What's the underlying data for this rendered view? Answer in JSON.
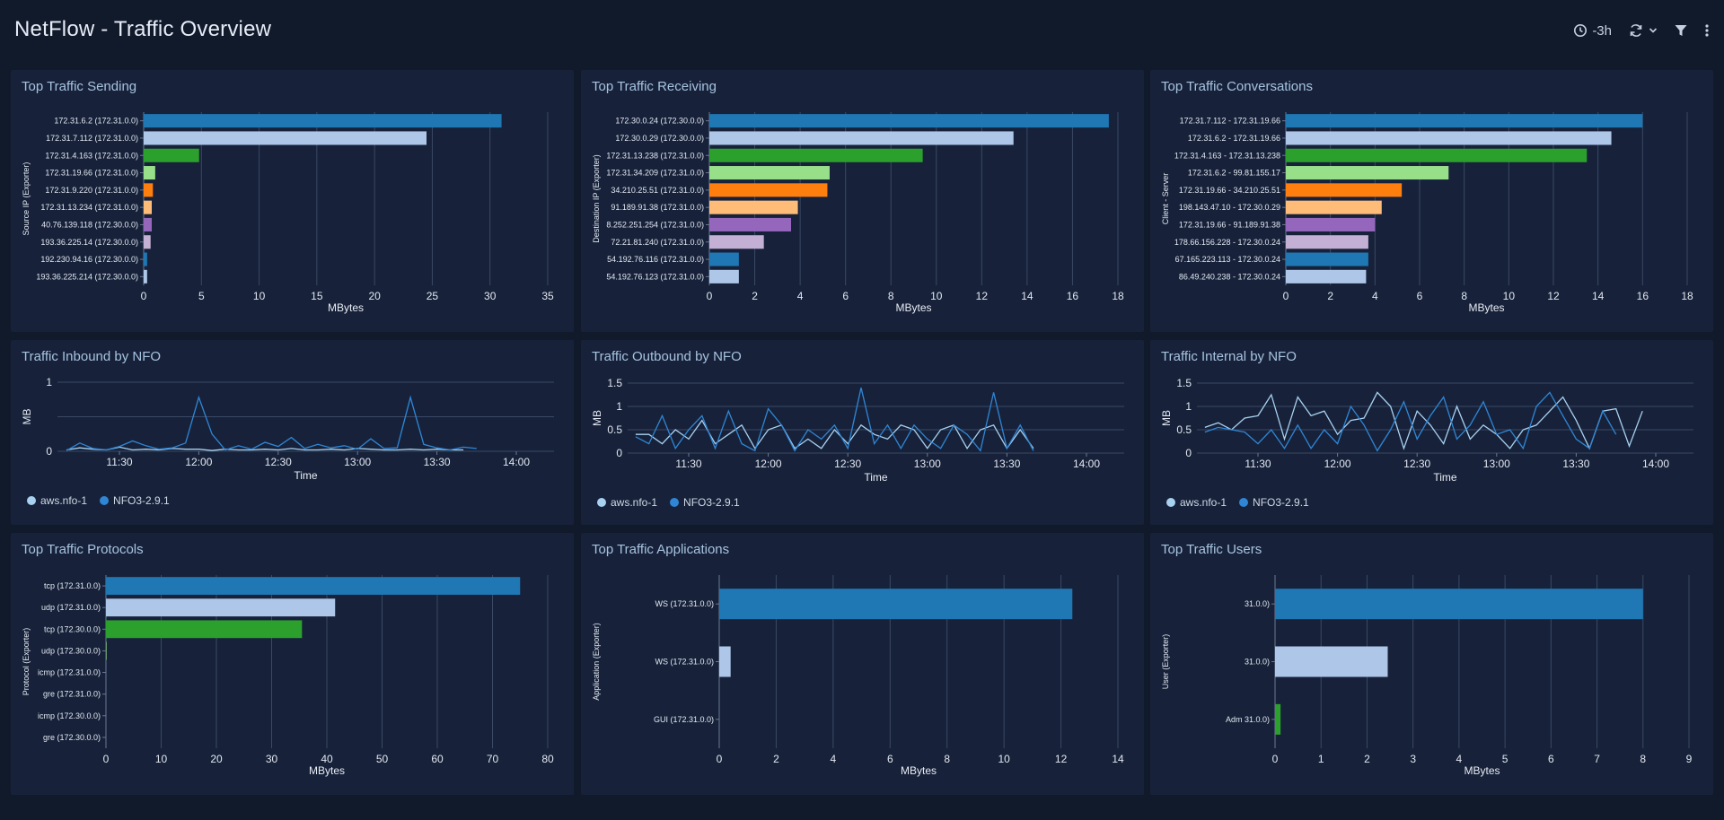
{
  "header": {
    "title": "NetFlow - Traffic Overview",
    "time_range": "-3h"
  },
  "colors": {
    "palette": [
      "#1f77b4",
      "#aec7e8",
      "#2ca02c",
      "#98df8a",
      "#ff7f0e",
      "#ffbb78",
      "#9467bd",
      "#c5b0d5",
      "#1f77b4",
      "#aec7e8"
    ],
    "aws": "#a8d1f0",
    "nfo3": "#2f86d6"
  },
  "panels": {
    "sending": {
      "title": "Top Traffic Sending",
      "chart_data": {
        "type": "bar",
        "orientation": "horizontal",
        "categories": [
          "172.31.6.2 (172.31.0.0)",
          "172.31.7.112 (172.31.0.0)",
          "172.31.4.163 (172.31.0.0)",
          "172.31.19.66 (172.31.0.0)",
          "172.31.9.220 (172.31.0.0)",
          "172.31.13.234 (172.31.0.0)",
          "40.76.139.118 (172.30.0.0)",
          "193.36.225.14 (172.30.0.0)",
          "192.230.94.16 (172.30.0.0)",
          "193.36.225.214 (172.30.0.0)"
        ],
        "values": [
          31,
          24.5,
          4.8,
          1.0,
          0.8,
          0.7,
          0.7,
          0.6,
          0.3,
          0.3
        ],
        "xlim": [
          0,
          35
        ],
        "xticks": [
          0,
          5,
          10,
          15,
          20,
          25,
          30,
          35
        ],
        "xlabel": "MBytes",
        "ylabel": "Source IP (Exporter)"
      }
    },
    "receiving": {
      "title": "Top Traffic Receiving",
      "chart_data": {
        "type": "bar",
        "orientation": "horizontal",
        "categories": [
          "172.30.0.24 (172.30.0.0)",
          "172.30.0.29 (172.30.0.0)",
          "172.31.13.238 (172.31.0.0)",
          "172.31.34.209 (172.31.0.0)",
          "34.210.25.51 (172.31.0.0)",
          "91.189.91.38 (172.31.0.0)",
          "8.252.251.254 (172.31.0.0)",
          "72.21.81.240 (172.31.0.0)",
          "54.192.76.116 (172.31.0.0)",
          "54.192.76.123 (172.31.0.0)"
        ],
        "values": [
          17.6,
          13.4,
          9.4,
          5.3,
          5.2,
          3.9,
          3.6,
          2.4,
          1.3,
          1.3
        ],
        "xlim": [
          0,
          18
        ],
        "xticks": [
          0,
          2,
          4,
          6,
          8,
          10,
          12,
          14,
          16,
          18
        ],
        "xlabel": "MBytes",
        "ylabel": "Destination IP (Exporter)"
      }
    },
    "conversations": {
      "title": "Top Traffic Conversations",
      "chart_data": {
        "type": "bar",
        "orientation": "horizontal",
        "categories": [
          "172.31.7.112 - 172.31.19.66",
          "172.31.6.2 - 172.31.19.66",
          "172.31.4.163 - 172.31.13.238",
          "172.31.6.2 - 99.81.155.17",
          "172.31.19.66 - 34.210.25.51",
          "198.143.47.10 - 172.30.0.29",
          "172.31.19.66 - 91.189.91.38",
          "178.66.156.228 - 172.30.0.24",
          "67.165.223.113 - 172.30.0.24",
          "86.49.240.238 - 172.30.0.24"
        ],
        "values": [
          16,
          14.6,
          13.5,
          7.3,
          5.2,
          4.3,
          4.0,
          3.7,
          3.7,
          3.6
        ],
        "xlim": [
          0,
          18
        ],
        "xticks": [
          0,
          2,
          4,
          6,
          8,
          10,
          12,
          14,
          16,
          18
        ],
        "xlabel": "MBytes",
        "ylabel": "Client - Server"
      }
    },
    "inbound": {
      "title": "Traffic Inbound by NFO",
      "chart_data": {
        "type": "line",
        "x_start": "11:10",
        "x_step_minutes": 5,
        "xticks": [
          "11:30",
          "12:00",
          "12:30",
          "13:00",
          "13:30",
          "14:00"
        ],
        "ylim": [
          0,
          1
        ],
        "yticks": [
          0,
          0.5,
          1
        ],
        "ytick_labels": [
          "0",
          "",
          "1"
        ],
        "xlabel": "Time",
        "ylabel": "MB",
        "series": [
          {
            "name": "aws.nfo-1",
            "values": [
              0.02,
              0.05,
              0.03,
              0.02,
              0.06,
              0.02,
              0.03,
              0.02,
              0.04,
              0.03,
              0.03,
              0.01,
              0.03,
              0.02,
              0.02,
              0.03,
              0.02,
              0.04,
              0.02,
              0.02,
              0.03,
              0.02,
              0.04,
              0.03,
              0.02,
              0.02,
              0.03,
              0.02,
              0.03,
              0.02,
              0.02
            ]
          },
          {
            "name": "NFO3-2.9.1",
            "values": [
              0.01,
              0.12,
              0.04,
              0.02,
              0.07,
              0.15,
              0.08,
              0.03,
              0.05,
              0.12,
              0.78,
              0.25,
              0.02,
              0.08,
              0.03,
              0.13,
              0.07,
              0.2,
              0.04,
              0.1,
              0.05,
              0.08,
              0.03,
              0.18,
              0.04,
              0.05,
              0.78,
              0.1,
              0.05,
              0.02,
              0.06,
              0.04
            ]
          }
        ]
      }
    },
    "outbound": {
      "title": "Traffic Outbound by NFO",
      "chart_data": {
        "type": "line",
        "x_start": "11:10",
        "x_step_minutes": 5,
        "xticks": [
          "11:30",
          "12:00",
          "12:30",
          "13:00",
          "13:30",
          "14:00"
        ],
        "ylim": [
          0,
          1.5
        ],
        "yticks": [
          0,
          0.5,
          1,
          1.5
        ],
        "ytick_labels": [
          "0",
          "0.5",
          "1",
          "1.5"
        ],
        "xlabel": "Time",
        "ylabel": "MB",
        "series": [
          {
            "name": "aws.nfo-1",
            "values": [
              0.4,
              0.4,
              0.2,
              0.5,
              0.3,
              0.7,
              0.2,
              0.4,
              0.6,
              0.1,
              0.5,
              0.6,
              0.1,
              0.3,
              0.1,
              0.5,
              0.2,
              0.6,
              0.4,
              0.3,
              0.6,
              0.5,
              0.1,
              0.5,
              0.6,
              0.1,
              0.5,
              0.6,
              0.1,
              0.5,
              0.1
            ]
          },
          {
            "name": "NFO3-2.9.1",
            "values": [
              0.35,
              0.2,
              0.8,
              0.1,
              0.5,
              0.8,
              0.1,
              0.9,
              0.2,
              0.05,
              0.95,
              0.6,
              0.05,
              0.5,
              0.3,
              0.6,
              0.1,
              1.4,
              0.2,
              0.6,
              0.1,
              0.6,
              0.3,
              0.1,
              0.6,
              0.4,
              0.05,
              1.3,
              0.1,
              0.6,
              0.05
            ]
          }
        ]
      }
    },
    "internal": {
      "title": "Traffic Internal by NFO",
      "chart_data": {
        "type": "line",
        "x_start": "11:10",
        "x_step_minutes": 5,
        "xticks": [
          "11:30",
          "12:00",
          "12:30",
          "13:00",
          "13:30",
          "14:00"
        ],
        "ylim": [
          0,
          1.5
        ],
        "yticks": [
          0,
          0.5,
          1,
          1.5
        ],
        "ytick_labels": [
          "0",
          "0.5",
          "1",
          "1.5"
        ],
        "xlabel": "Time",
        "ylabel": "MB",
        "series": [
          {
            "name": "aws.nfo-1",
            "values": [
              0.55,
              0.65,
              0.5,
              0.75,
              0.8,
              1.25,
              0.3,
              1.2,
              0.8,
              0.9,
              0.4,
              0.7,
              0.75,
              1.3,
              1.0,
              0.1,
              0.9,
              0.6,
              0.2,
              1.0,
              0.3,
              0.6,
              0.4,
              0.1,
              0.5,
              0.6,
              0.9,
              1.2,
              0.7,
              0.1,
              0.9,
              0.95,
              0.15,
              0.9
            ]
          },
          {
            "name": "NFO3-2.9.1",
            "values": [
              0.45,
              0.55,
              0.5,
              0.45,
              0.2,
              0.5,
              0.1,
              0.6,
              0.1,
              0.5,
              0.2,
              1.0,
              0.6,
              0.05,
              0.5,
              1.1,
              0.3,
              0.8,
              1.2,
              0.3,
              0.6,
              1.1,
              0.4,
              0.5,
              0.1,
              1.0,
              1.3,
              0.8,
              0.3,
              0.1,
              0.9,
              0.4
            ]
          }
        ]
      }
    },
    "protocols": {
      "title": "Top Traffic Protocols",
      "chart_data": {
        "type": "bar",
        "orientation": "horizontal",
        "categories": [
          "tcp (172.31.0.0)",
          "udp (172.31.0.0)",
          "tcp (172.30.0.0)",
          "udp (172.30.0.0)",
          "icmp (172.31.0.0)",
          "gre (172.31.0.0)",
          "icmp (172.30.0.0)",
          "gre (172.30.0.0)"
        ],
        "values": [
          75,
          41.5,
          35.5,
          0.1,
          0.05,
          0.05,
          0.02,
          0.01
        ],
        "xlim": [
          0,
          80
        ],
        "xticks": [
          0,
          10,
          20,
          30,
          40,
          50,
          60,
          70,
          80
        ],
        "xlabel": "MBytes",
        "ylabel": "Protocol (Exporter)"
      }
    },
    "applications": {
      "title": "Top Traffic Applications",
      "chart_data": {
        "type": "bar",
        "orientation": "horizontal",
        "categories": [
          "WS (172.31.0.0)",
          "WS (172.31.0.0)",
          "GUI (172.31.0.0)"
        ],
        "values": [
          12.4,
          0.4,
          0.0
        ],
        "xlim": [
          0,
          14
        ],
        "xticks": [
          0,
          2,
          4,
          6,
          8,
          10,
          12,
          14
        ],
        "xlabel": "MBytes",
        "ylabel": "Application (Exporter)"
      }
    },
    "users": {
      "title": "Top Traffic Users",
      "chart_data": {
        "type": "bar",
        "orientation": "horizontal",
        "categories": [
          "31.0.0)",
          "31.0.0)",
          "Adm 31.0.0)"
        ],
        "values": [
          8.0,
          2.45,
          0.12
        ],
        "xlim": [
          0,
          9
        ],
        "xticks": [
          0,
          1,
          2,
          3,
          4,
          5,
          6,
          7,
          8,
          9
        ],
        "xlabel": "MBytes",
        "ylabel": "User (Exporter)"
      }
    }
  }
}
